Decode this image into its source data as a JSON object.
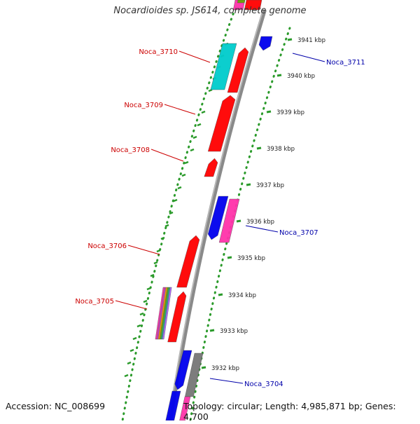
{
  "title": "Nocardioides sp. JS614, complete genome",
  "footer": {
    "accession": "Accession: NC_008699",
    "summary": "Topology: circular; Length: 4,985,871 bp; Genes: 4,700"
  },
  "colors": {
    "red": "#ff0000",
    "blue": "#0000ee",
    "cyan": "#00cccc",
    "pink": "#ff33aa",
    "gray": "#777777",
    "backbone": "#8a8a8a",
    "tick_green": "#2a9a2a",
    "label_red": "#cc0000",
    "label_blue": "#0000aa"
  },
  "scale_ticks": [
    {
      "label": "3941 kbp"
    },
    {
      "label": "3940 kbp"
    },
    {
      "label": "3939 kbp"
    },
    {
      "label": "3938 kbp"
    },
    {
      "label": "3937 kbp"
    },
    {
      "label": "3936 kbp"
    },
    {
      "label": "3935 kbp"
    },
    {
      "label": "3934 kbp"
    },
    {
      "label": "3933 kbp"
    },
    {
      "label": "3932 kbp"
    }
  ],
  "gene_labels": [
    {
      "text": "Noca_3711",
      "color": "blue"
    },
    {
      "text": "Noca_3710",
      "color": "red"
    },
    {
      "text": "Noca_3709",
      "color": "red"
    },
    {
      "text": "Noca_3708",
      "color": "red"
    },
    {
      "text": "Noca_3707",
      "color": "blue"
    },
    {
      "text": "Noca_3706",
      "color": "red"
    },
    {
      "text": "Noca_3705",
      "color": "red"
    },
    {
      "text": "Noca_3704",
      "color": "blue"
    }
  ]
}
